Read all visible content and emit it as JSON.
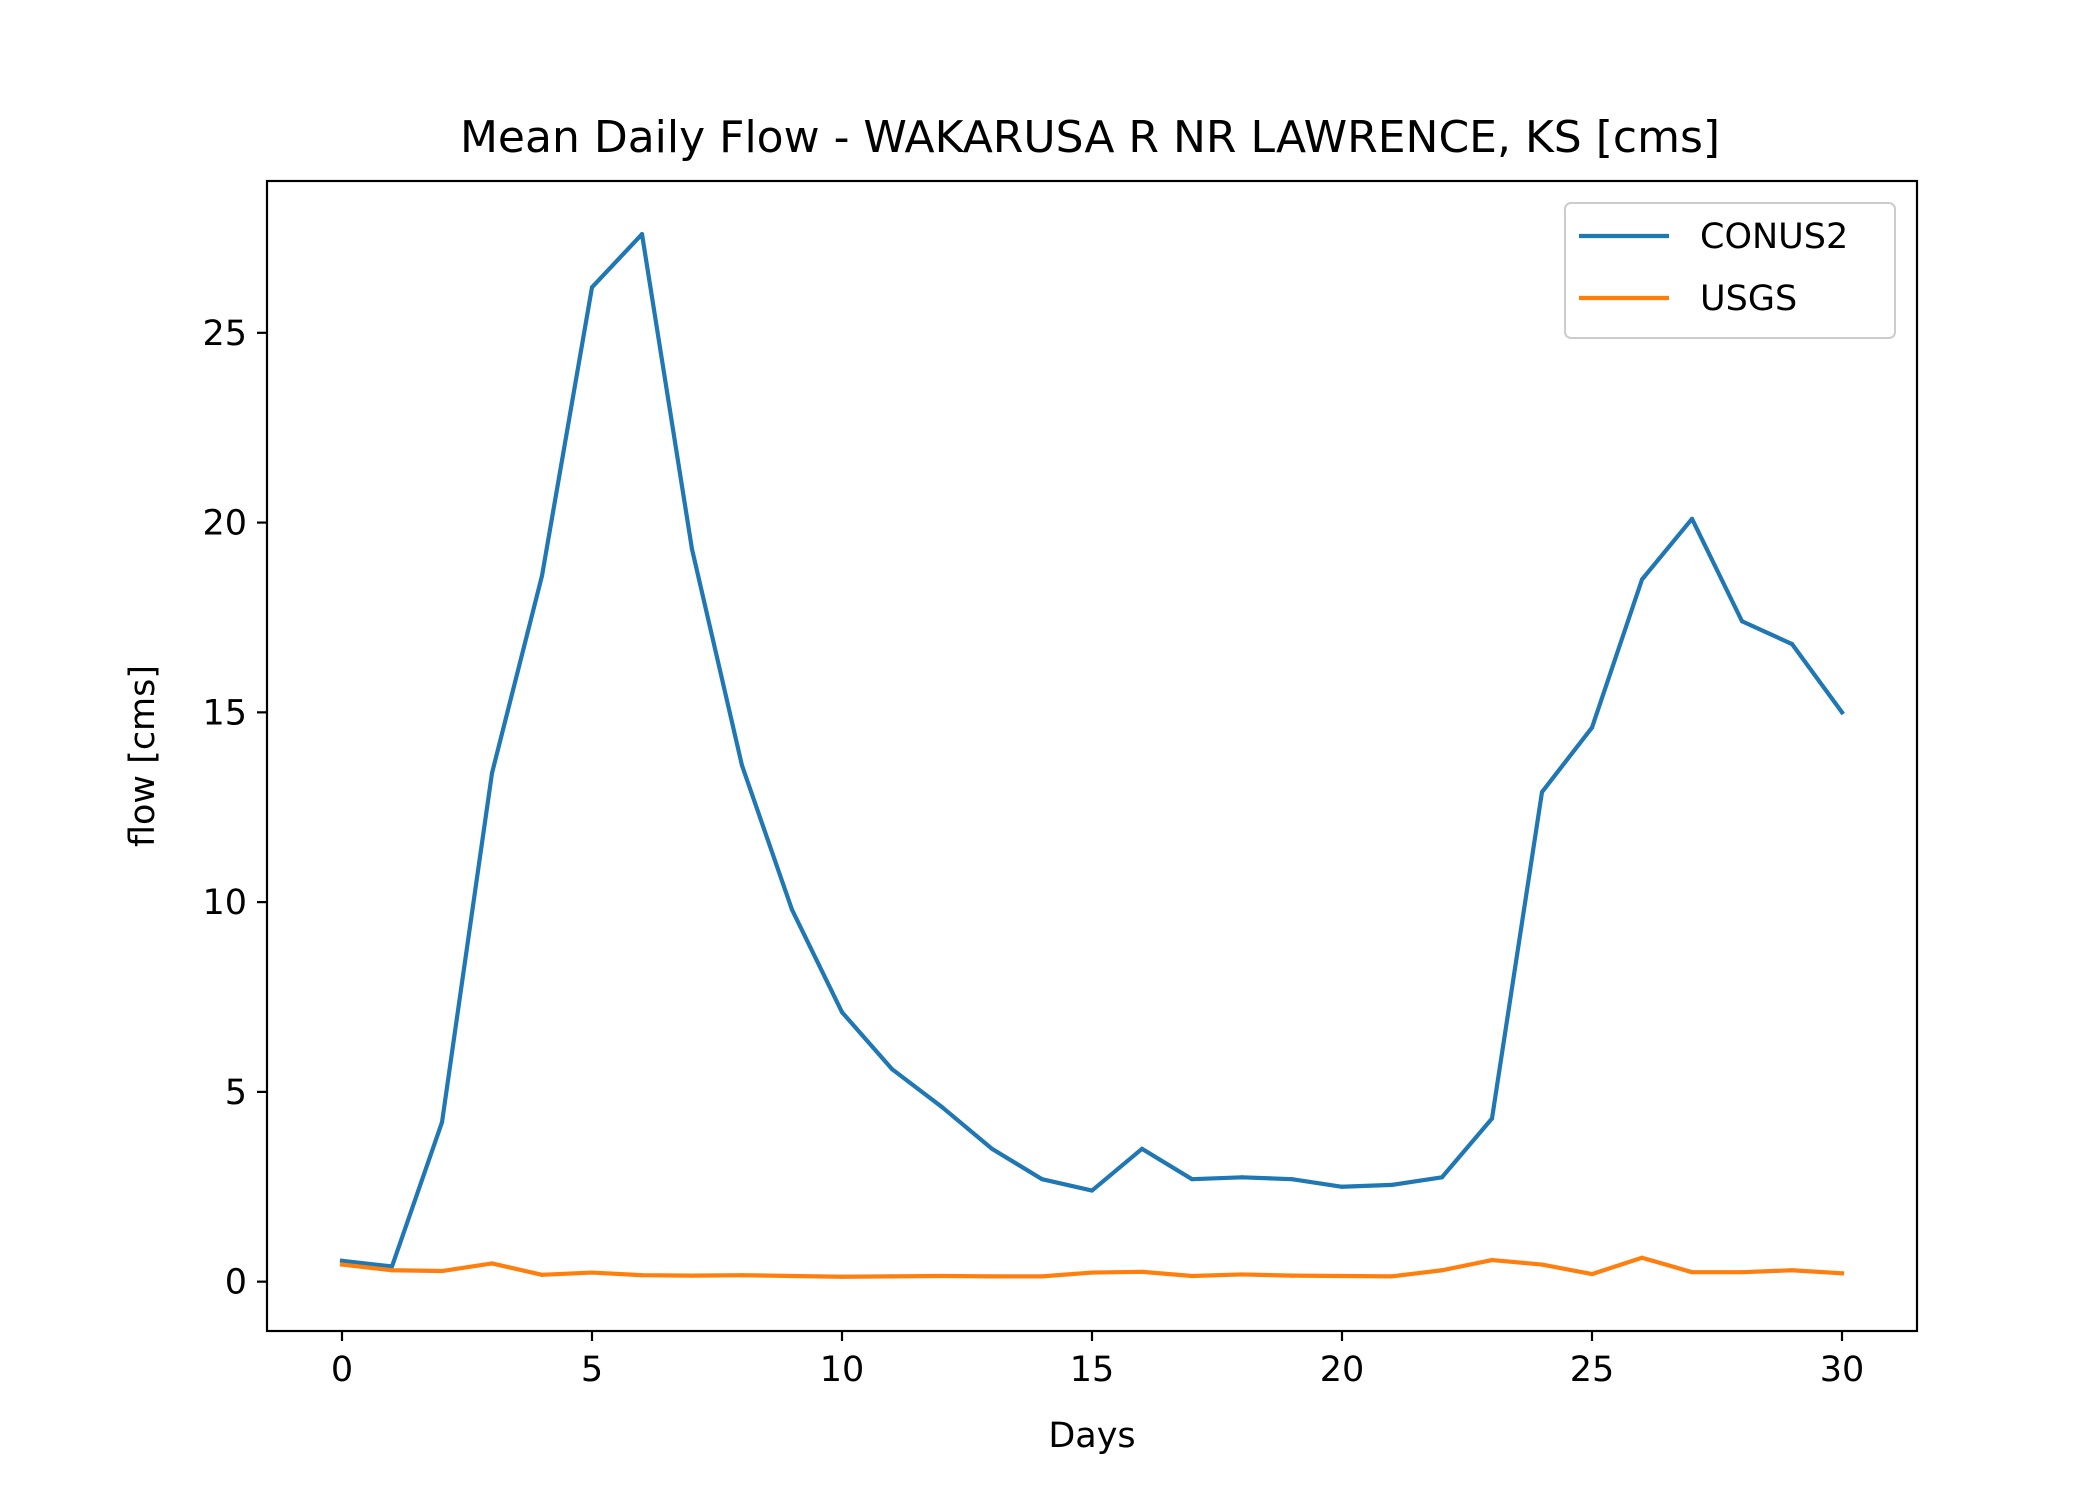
{
  "chart_data": {
    "type": "line",
    "title": "Mean Daily Flow - WAKARUSA R NR LAWRENCE, KS [cms]",
    "xlabel": "Days",
    "ylabel": "flow [cms]",
    "xlim": [
      -1.5,
      31.5
    ],
    "ylim": [
      -1.3,
      29.0
    ],
    "xticks": [
      0,
      5,
      10,
      15,
      20,
      25,
      30
    ],
    "yticks": [
      0,
      5,
      10,
      15,
      20,
      25
    ],
    "grid": false,
    "legend_position": "top-right",
    "x": [
      0,
      1,
      2,
      3,
      4,
      5,
      6,
      7,
      8,
      9,
      10,
      11,
      12,
      13,
      14,
      15,
      16,
      17,
      18,
      19,
      20,
      21,
      22,
      23,
      24,
      25,
      26,
      27,
      28,
      29,
      30
    ],
    "series": [
      {
        "name": "CONUS2",
        "color": "#1f77b4",
        "values": [
          0.55,
          0.4,
          4.2,
          13.4,
          18.6,
          26.2,
          27.6,
          19.3,
          13.6,
          9.8,
          7.1,
          5.6,
          4.6,
          3.5,
          2.7,
          2.4,
          3.5,
          2.7,
          2.75,
          2.7,
          2.5,
          2.55,
          2.75,
          4.3,
          12.9,
          14.6,
          18.5,
          20.1,
          17.4,
          16.8,
          15.0
        ]
      },
      {
        "name": "USGS",
        "color": "#ff7f0e",
        "values": [
          0.45,
          0.3,
          0.28,
          0.48,
          0.18,
          0.24,
          0.17,
          0.16,
          0.17,
          0.15,
          0.13,
          0.14,
          0.15,
          0.14,
          0.14,
          0.24,
          0.26,
          0.15,
          0.19,
          0.16,
          0.15,
          0.14,
          0.3,
          0.57,
          0.45,
          0.2,
          0.63,
          0.25,
          0.25,
          0.3,
          0.22
        ]
      }
    ]
  }
}
